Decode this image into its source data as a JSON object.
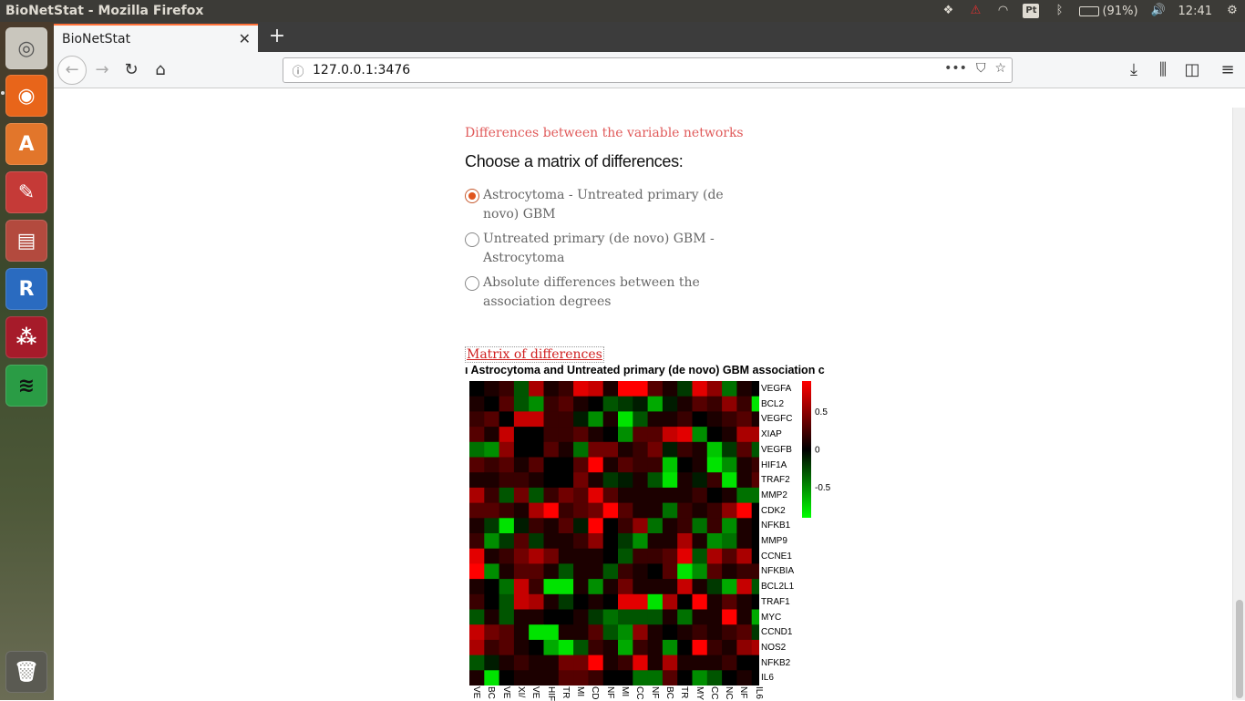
{
  "os": {
    "window_title": "BioNetStat - Mozilla Firefox",
    "battery": "(91%)",
    "clock": "12:41"
  },
  "browser": {
    "tab_title": "BioNetStat",
    "url": "127.0.0.1:3476"
  },
  "page": {
    "section_heading": "Differences between the variable networks",
    "choose_label": "Choose a matrix of differences:",
    "options": [
      {
        "label": "Astrocytoma - Untreated primary (de novo) GBM",
        "selected": true
      },
      {
        "label": "Untreated primary (de novo) GBM - Astrocytoma",
        "selected": false
      },
      {
        "label": "Absolute differences between the association degrees",
        "selected": false
      }
    ],
    "matrix_link": "Matrix of differences",
    "plot_title": "ı Astrocytoma and Untreated primary (de novo) GBM association c"
  },
  "chart_data": {
    "type": "heatmap",
    "title": "ı Astrocytoma and Untreated primary (de novo) GBM association c",
    "rows": [
      "VEGFA",
      "BCL2",
      "VEGFC",
      "XIAP",
      "VEGFB",
      "HIF1A",
      "TRAF2",
      "MMP2",
      "CDK2",
      "NFKB1",
      "MMP9",
      "CCNE1",
      "NFKBIA",
      "BCL2L1",
      "TRAF1",
      "MYC",
      "CCND1",
      "NOS2",
      "NFKB2",
      "IL6"
    ],
    "column_tick_labels": [
      "VE",
      "BC",
      "VE",
      "XI/",
      "VE",
      "HIF",
      "TR",
      "MI",
      "CD",
      "NF",
      "MI",
      "CC",
      "NF",
      "BC",
      "TR",
      "MY",
      "CC",
      "NC",
      "NF",
      "IL6"
    ],
    "legend_ticks": [
      "0.5",
      "0",
      "-0.5"
    ],
    "color_range": [
      -0.9,
      0.9
    ],
    "colors": {
      "high": "#ff0000",
      "mid": "#000000",
      "low": "#00ff00"
    },
    "values": [
      [
        0.0,
        0.1,
        0.2,
        -0.3,
        0.6,
        0.1,
        0.2,
        0.8,
        0.7,
        0.1,
        0.9,
        0.9,
        0.3,
        0.1,
        -0.2,
        0.8,
        0.5,
        -0.4,
        0.1,
        0.0
      ],
      [
        0.1,
        0.0,
        0.3,
        -0.3,
        -0.5,
        0.2,
        0.3,
        0.1,
        0.0,
        -0.3,
        -0.2,
        -0.1,
        -0.6,
        -0.1,
        0.1,
        0.3,
        0.2,
        0.5,
        0.2,
        -0.8
      ],
      [
        0.2,
        0.3,
        0.0,
        0.7,
        0.7,
        0.2,
        0.2,
        -0.1,
        -0.5,
        0.1,
        -0.8,
        -0.3,
        0.1,
        0.1,
        0.2,
        0.0,
        0.1,
        0.2,
        0.3,
        0.1
      ],
      [
        0.3,
        0.1,
        0.7,
        0.0,
        0.0,
        0.2,
        0.2,
        0.3,
        0.1,
        0.0,
        -0.5,
        0.3,
        0.3,
        0.7,
        0.8,
        -0.5,
        0.0,
        0.1,
        0.6,
        0.6
      ],
      [
        -0.4,
        -0.5,
        0.5,
        0.0,
        0.0,
        0.3,
        0.1,
        -0.4,
        0.4,
        0.4,
        0.1,
        0.2,
        0.4,
        -0.1,
        0.2,
        0.1,
        -0.7,
        -0.2,
        0.3,
        -0.3
      ],
      [
        0.3,
        0.2,
        0.3,
        0.1,
        0.3,
        0.0,
        0.0,
        0.3,
        0.9,
        0.1,
        0.3,
        0.2,
        0.2,
        -0.7,
        0.0,
        0.1,
        -0.8,
        -0.5,
        0.1,
        0.2
      ],
      [
        0.1,
        0.1,
        0.2,
        0.2,
        0.1,
        0.0,
        0.0,
        0.4,
        0.1,
        -0.2,
        -0.1,
        0.1,
        -0.3,
        -0.8,
        0.1,
        -0.1,
        0.2,
        -0.8,
        0.1,
        0.3
      ],
      [
        0.6,
        0.2,
        -0.3,
        0.4,
        -0.3,
        0.2,
        0.4,
        0.3,
        0.8,
        0.3,
        0.1,
        0.1,
        0.1,
        0.1,
        0.1,
        0.2,
        0.0,
        0.1,
        -0.4,
        -0.4
      ],
      [
        0.3,
        0.3,
        0.2,
        0.1,
        0.6,
        0.9,
        0.2,
        0.3,
        0.4,
        0.9,
        0.3,
        0.1,
        0.1,
        -0.4,
        0.2,
        0.1,
        0.2,
        0.5,
        0.9,
        0.0
      ],
      [
        0.1,
        -0.2,
        -0.8,
        -0.1,
        0.2,
        0.1,
        0.3,
        -0.1,
        0.9,
        0.0,
        0.2,
        0.5,
        -0.4,
        0.1,
        0.2,
        -0.4,
        0.2,
        -0.5,
        0.1,
        0.0
      ],
      [
        0.2,
        -0.5,
        -0.2,
        0.3,
        -0.2,
        0.1,
        0.1,
        0.2,
        0.5,
        0.0,
        -0.2,
        -0.5,
        0.1,
        0.1,
        0.6,
        0.1,
        -0.5,
        -0.4,
        0.1,
        0.0
      ],
      [
        0.8,
        0.1,
        0.2,
        0.4,
        0.6,
        0.4,
        0.1,
        0.1,
        0.1,
        0.0,
        -0.3,
        0.2,
        0.2,
        0.3,
        0.8,
        -0.3,
        0.6,
        0.3,
        0.6,
        0.0
      ],
      [
        0.9,
        -0.5,
        0.1,
        0.3,
        0.3,
        0.1,
        -0.3,
        0.1,
        0.1,
        -0.3,
        0.2,
        0.1,
        0.0,
        0.3,
        -0.8,
        -0.5,
        0.3,
        0.1,
        0.2,
        0.2
      ],
      [
        0.1,
        0.0,
        -0.4,
        0.7,
        0.2,
        -0.8,
        -0.8,
        0.1,
        -0.5,
        0.1,
        0.4,
        0.1,
        0.1,
        0.1,
        0.7,
        0.1,
        -0.2,
        -0.6,
        0.7,
        -0.3
      ],
      [
        0.2,
        0.0,
        -0.3,
        0.7,
        0.6,
        0.1,
        -0.2,
        0.0,
        0.1,
        0.0,
        0.8,
        0.8,
        -0.8,
        0.6,
        0.0,
        0.9,
        0.1,
        0.3,
        0.1,
        0.0
      ],
      [
        -0.3,
        0.1,
        -0.3,
        0.1,
        0.1,
        0.0,
        0.0,
        0.1,
        -0.2,
        -0.4,
        -0.3,
        -0.3,
        -0.3,
        0.1,
        -0.4,
        0.1,
        0.1,
        0.9,
        0.1,
        -0.6
      ],
      [
        0.7,
        0.4,
        0.3,
        0.1,
        -0.8,
        -0.8,
        0.1,
        0.1,
        0.3,
        -0.3,
        -0.5,
        0.5,
        0.1,
        0.0,
        0.1,
        0.2,
        0.1,
        0.2,
        0.3,
        -0.2
      ],
      [
        0.6,
        0.2,
        0.3,
        0.1,
        0.0,
        -0.6,
        -0.8,
        -0.3,
        0.2,
        0.1,
        -0.6,
        0.2,
        0.1,
        -0.5,
        0.0,
        0.9,
        0.2,
        0.1,
        0.5,
        0.6
      ],
      [
        -0.3,
        -0.1,
        0.1,
        0.2,
        0.1,
        0.1,
        0.4,
        0.4,
        0.9,
        0.1,
        0.2,
        0.8,
        0.1,
        0.6,
        0.1,
        0.1,
        0.1,
        0.2,
        0.0,
        0.0
      ],
      [
        0.1,
        -0.8,
        0.0,
        0.1,
        0.1,
        0.1,
        0.3,
        0.3,
        0.2,
        0.0,
        0.0,
        -0.4,
        -0.4,
        0.3,
        0.0,
        -0.5,
        -0.3,
        0.0,
        0.1,
        0.0
      ]
    ]
  }
}
